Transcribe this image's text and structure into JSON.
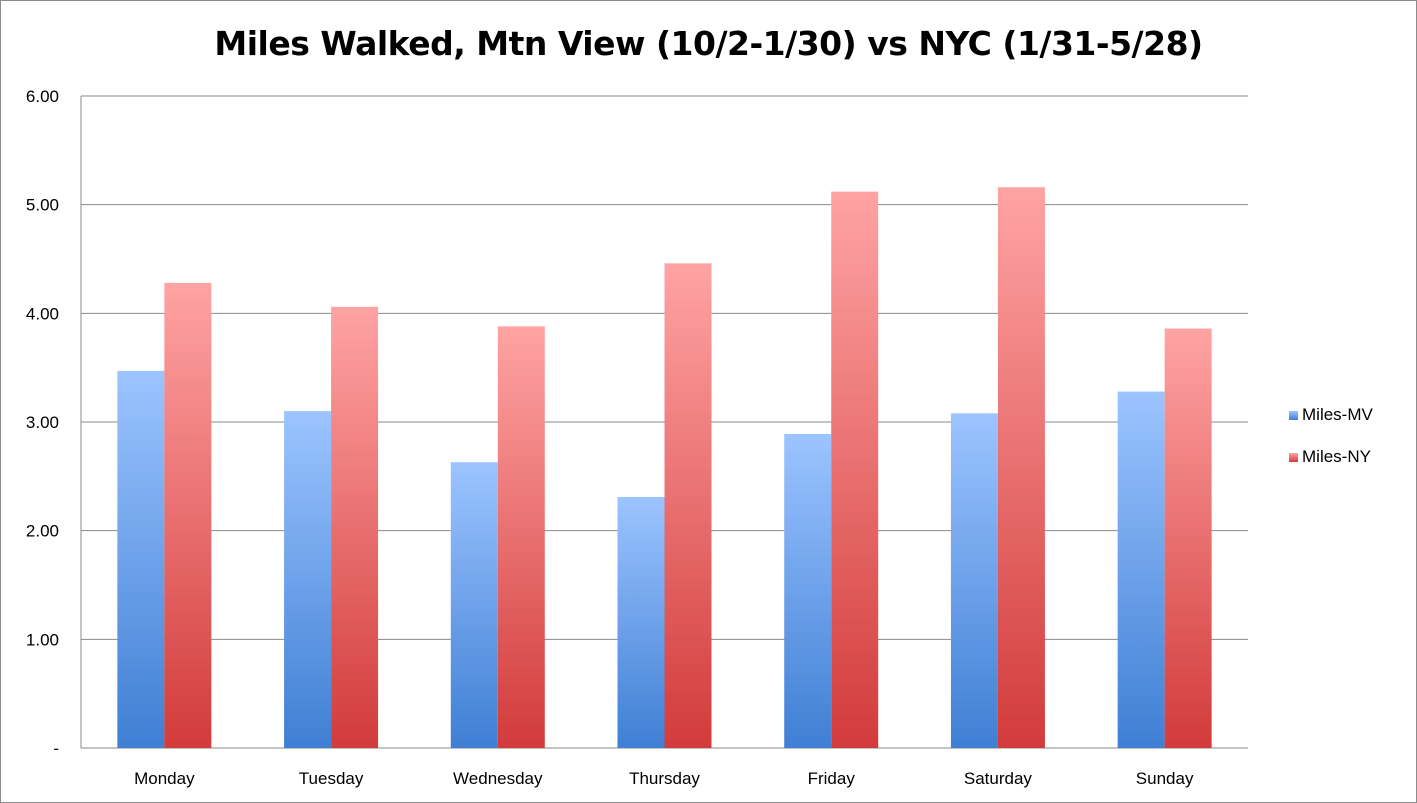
{
  "chart_data": {
    "type": "bar",
    "title": "Miles Walked, Mtn View (10/2-1/30) vs NYC (1/31-5/28)",
    "xlabel": "",
    "ylabel": "",
    "categories": [
      "Monday",
      "Tuesday",
      "Wednesday",
      "Thursday",
      "Friday",
      "Saturday",
      "Sunday"
    ],
    "series": [
      {
        "name": "Miles-MV",
        "color_top": "#9cc4ff",
        "color_bottom": "#3f7fd4",
        "values": [
          3.47,
          3.1,
          2.63,
          2.31,
          2.89,
          3.08,
          3.28
        ]
      },
      {
        "name": "Miles-NY",
        "color_top": "#ffa3a3",
        "color_bottom": "#d23b3b",
        "values": [
          4.28,
          4.06,
          3.88,
          4.46,
          5.12,
          5.16,
          3.86
        ]
      }
    ],
    "ylim": [
      0,
      6
    ],
    "yticks": [
      0,
      1,
      2,
      3,
      4,
      5,
      6
    ],
    "ytick_labels": [
      "-",
      "1.00",
      "2.00",
      "3.00",
      "4.00",
      "5.00",
      "6.00"
    ],
    "grid": true,
    "legend_position": "right"
  }
}
